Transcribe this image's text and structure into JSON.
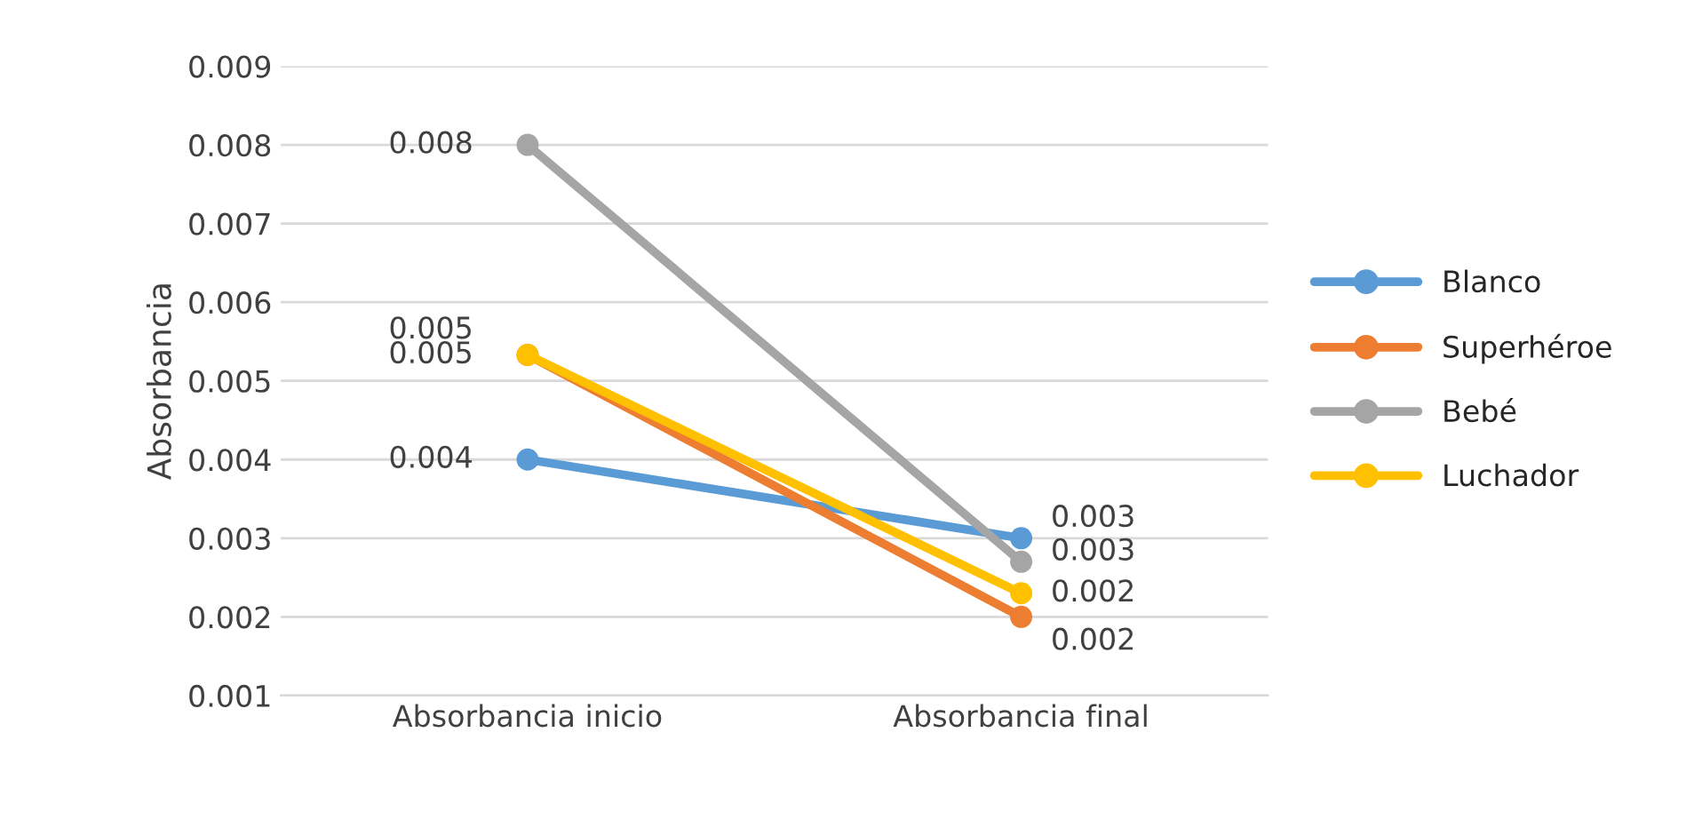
{
  "chart_data": {
    "type": "line",
    "ylabel": "Absorbancia",
    "categories": [
      "Absorbancia inicio",
      "Absorbancia final"
    ],
    "series": [
      {
        "name": "Blanco",
        "color": "#5b9bd5",
        "values": [
          0.004,
          0.003
        ],
        "value_labels": [
          "0.004",
          "0.003"
        ]
      },
      {
        "name": "Superhéroe",
        "color": "#ed7d31",
        "values": [
          0.00533,
          0.002
        ],
        "value_labels": [
          "0.005",
          "0.002"
        ]
      },
      {
        "name": "Bebé",
        "color": "#a5a5a5",
        "values": [
          0.008,
          0.0027
        ],
        "value_labels": [
          "0.008",
          "0.003"
        ]
      },
      {
        "name": "Luchador",
        "color": "#ffc000",
        "values": [
          0.00533,
          0.0023
        ],
        "value_labels": [
          "0.005",
          "0.002"
        ]
      }
    ],
    "ylim": [
      0.001,
      0.009
    ],
    "yticks": [
      0.001,
      0.002,
      0.003,
      0.004,
      0.005,
      0.006,
      0.007,
      0.008,
      0.009
    ],
    "grid": "y",
    "legend": "right",
    "marker": "circle",
    "line_style": "solid"
  }
}
